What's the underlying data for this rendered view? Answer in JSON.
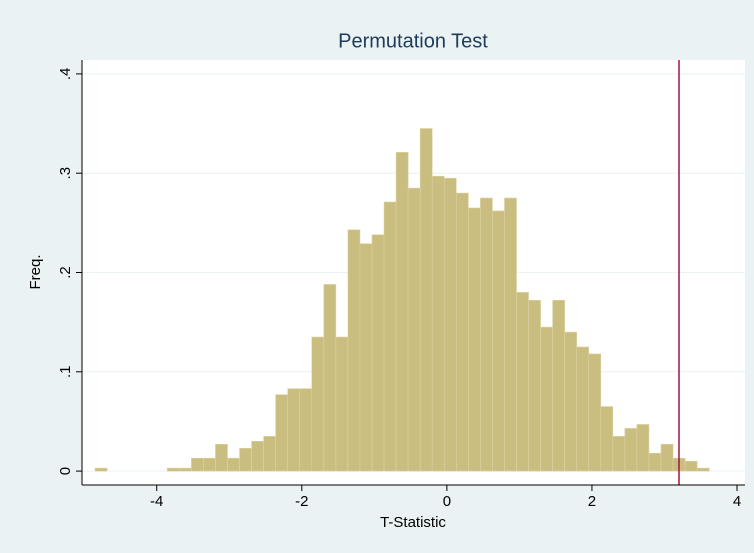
{
  "chart_data": {
    "type": "histogram",
    "title": "Permutation Test",
    "xlabel": "T-Statistic",
    "ylabel": "Freq.",
    "bins": [
      -4.85,
      -4.684,
      -4.518,
      -4.352,
      -4.186,
      -4.02,
      -3.854,
      -3.688,
      -3.522,
      -3.356,
      -3.19,
      -3.024,
      -2.858,
      -2.692,
      -2.526,
      -2.36,
      -2.194,
      -2.028,
      -1.862,
      -1.696,
      -1.53,
      -1.364,
      -1.198,
      -1.032,
      -0.866,
      -0.7,
      -0.534,
      -0.368,
      -0.202,
      -0.036,
      0.13,
      0.296,
      0.462,
      0.628,
      0.794,
      0.96,
      1.126,
      1.292,
      1.458,
      1.624,
      1.79,
      1.956,
      2.122,
      2.288,
      2.454,
      2.62,
      2.786,
      2.952,
      3.118,
      3.284,
      3.45,
      3.616
    ],
    "values": [
      0.003,
      0,
      0,
      0,
      0,
      0,
      0.003,
      0.003,
      0.013,
      0.013,
      0.027,
      0.013,
      0.023,
      0.03,
      0.035,
      0.077,
      0.083,
      0.083,
      0.135,
      0.188,
      0.135,
      0.243,
      0.229,
      0.238,
      0.271,
      0.321,
      0.285,
      0.345,
      0.297,
      0.295,
      0.28,
      0.265,
      0.275,
      0.262,
      0.275,
      0.18,
      0.172,
      0.145,
      0.172,
      0.14,
      0.125,
      0.118,
      0.065,
      0.035,
      0.043,
      0.047,
      0.018,
      0.027,
      0.013,
      0.01,
      0.003
    ],
    "color": "#c9bd7f",
    "vline": 3.2,
    "vline_color": "#a0163c",
    "xlim": [
      -5.03,
      4.11
    ],
    "ylim": [
      -0.014,
      0.414
    ],
    "xticks": [
      -4,
      -2,
      0,
      2,
      4
    ],
    "yticks": [
      0,
      {
        "value": 0.1,
        "label": ".1"
      },
      {
        "value": 0.2,
        "label": ".2"
      },
      {
        "value": 0.3,
        "label": ".3"
      },
      {
        "value": 0.4,
        "label": ".4"
      }
    ],
    "grid": true
  }
}
